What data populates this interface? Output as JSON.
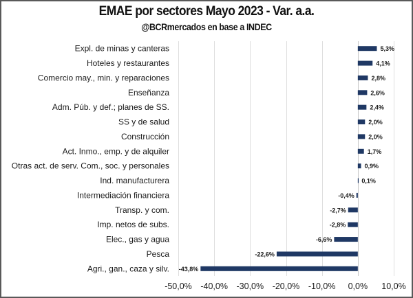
{
  "chart_data": {
    "type": "bar",
    "orientation": "horizontal",
    "title": "EMAE por sectores Mayo 2023 - Var. a.a.",
    "subtitle": "@BCRmercados en base a INDEC",
    "xlabel": "",
    "ylabel": "",
    "xlim": [
      -50,
      10
    ],
    "xticks": [
      -50,
      -40,
      -30,
      -20,
      -10,
      0,
      10
    ],
    "xtick_labels": [
      "-50,0%",
      "-40,0%",
      "-30,0%",
      "-20,0%",
      "-10,0%",
      "0,0%",
      "10,0%"
    ],
    "grid": "vertical",
    "legend": "none",
    "bar_color": "#1f3864",
    "categories": [
      "Expl. de minas y canteras",
      "Hoteles y restaurantes",
      "Comercio may., min. y reparaciones",
      "Enseñanza",
      "Adm. Púb. y def.; planes de SS.",
      "SS y de salud",
      "Construcción",
      "Act. Inmo., emp. y de alquiler",
      "Otras act. de serv. Com., soc. y personales",
      "Ind. manufacturera",
      "Intermediación financiera",
      "Transp. y com.",
      "Imp. netos de subs.",
      "Elec., gas y agua",
      "Pesca",
      "Agri., gan., caza y silv."
    ],
    "values": [
      5.3,
      4.1,
      2.8,
      2.6,
      2.4,
      2.0,
      2.0,
      1.7,
      0.9,
      0.1,
      -0.4,
      -2.7,
      -2.8,
      -6.6,
      -22.6,
      -43.8
    ],
    "value_labels": [
      "5,3%",
      "4,1%",
      "2,8%",
      "2,6%",
      "2,4%",
      "2,0%",
      "2,0%",
      "1,7%",
      "0,9%",
      "0,1%",
      "-0,4%",
      "-2,7%",
      "-2,8%",
      "-6,6%",
      "-22,6%",
      "-43,8%"
    ]
  }
}
